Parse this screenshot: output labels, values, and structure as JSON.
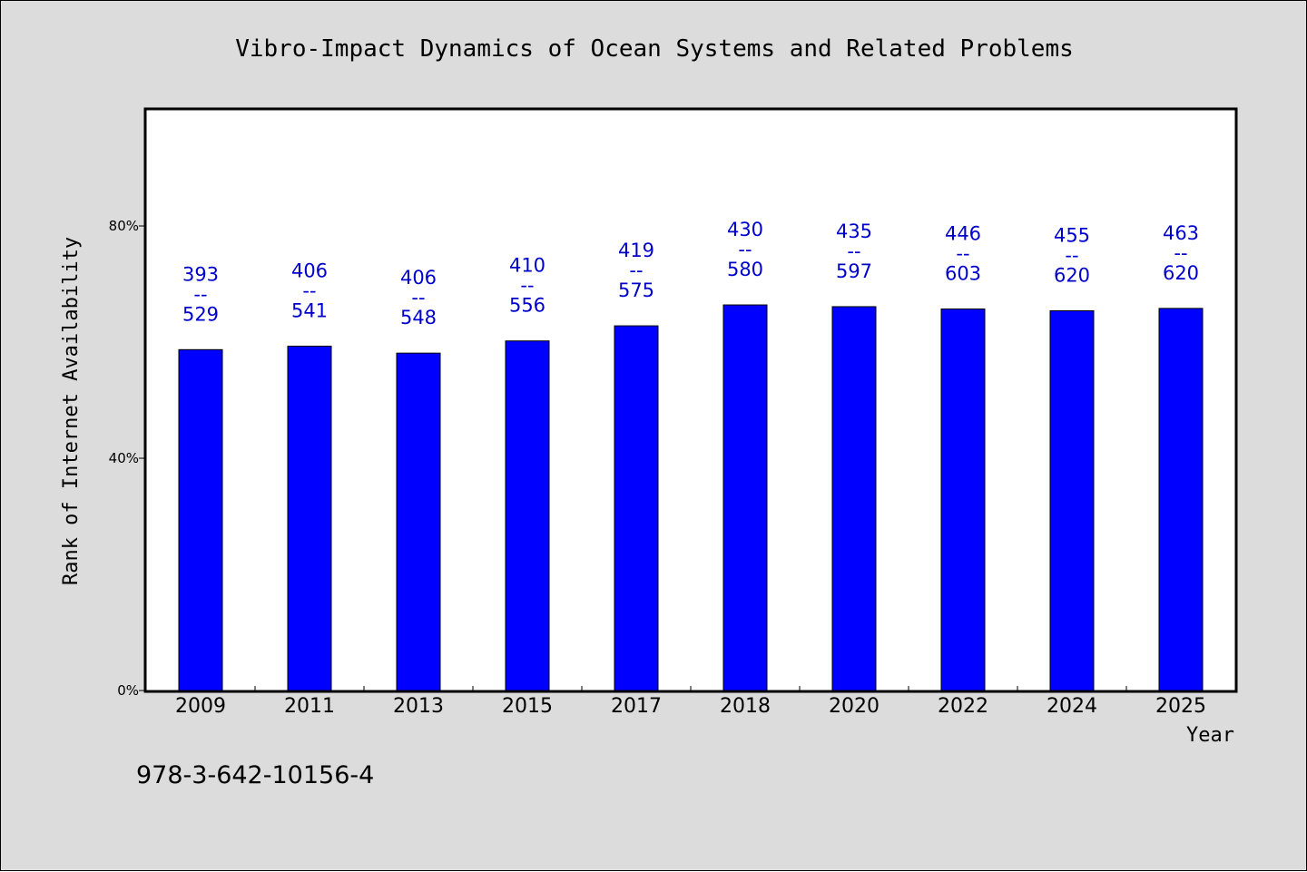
{
  "chart_data": {
    "type": "bar",
    "title": "Vibro-Impact Dynamics of Ocean Systems and Related Problems",
    "xlabel": "Year",
    "ylabel": "Rank of Internet Availability",
    "footnote": "978-3-642-10156-4",
    "categories": [
      "2009",
      "2011",
      "2013",
      "2015",
      "2017",
      "2018",
      "2020",
      "2022",
      "2024",
      "2025"
    ],
    "values": [
      58.7,
      59.3,
      58.1,
      60.2,
      62.8,
      66.4,
      66.1,
      65.7,
      65.4,
      65.8
    ],
    "labels": [
      {
        "top": "393",
        "sep": "--",
        "bottom": "529"
      },
      {
        "top": "406",
        "sep": "--",
        "bottom": "541"
      },
      {
        "top": "406",
        "sep": "--",
        "bottom": "548"
      },
      {
        "top": "410",
        "sep": "--",
        "bottom": "556"
      },
      {
        "top": "419",
        "sep": "--",
        "bottom": "575"
      },
      {
        "top": "430",
        "sep": "--",
        "bottom": "580"
      },
      {
        "top": "435",
        "sep": "--",
        "bottom": "597"
      },
      {
        "top": "446",
        "sep": "--",
        "bottom": "603"
      },
      {
        "top": "455",
        "sep": "--",
        "bottom": "620"
      },
      {
        "top": "463",
        "sep": "--",
        "bottom": "620"
      }
    ],
    "yticks": [
      {
        "value": 0,
        "label": "0%"
      },
      {
        "value": 40,
        "label": "40%"
      },
      {
        "value": 80,
        "label": "80%"
      }
    ],
    "ylim": [
      0,
      100
    ],
    "grid": false,
    "legend": "none",
    "colors": {
      "bar": "#0000ff",
      "label": "#0000cc",
      "background": "#dcdcdc",
      "plot": "#ffffff"
    }
  }
}
